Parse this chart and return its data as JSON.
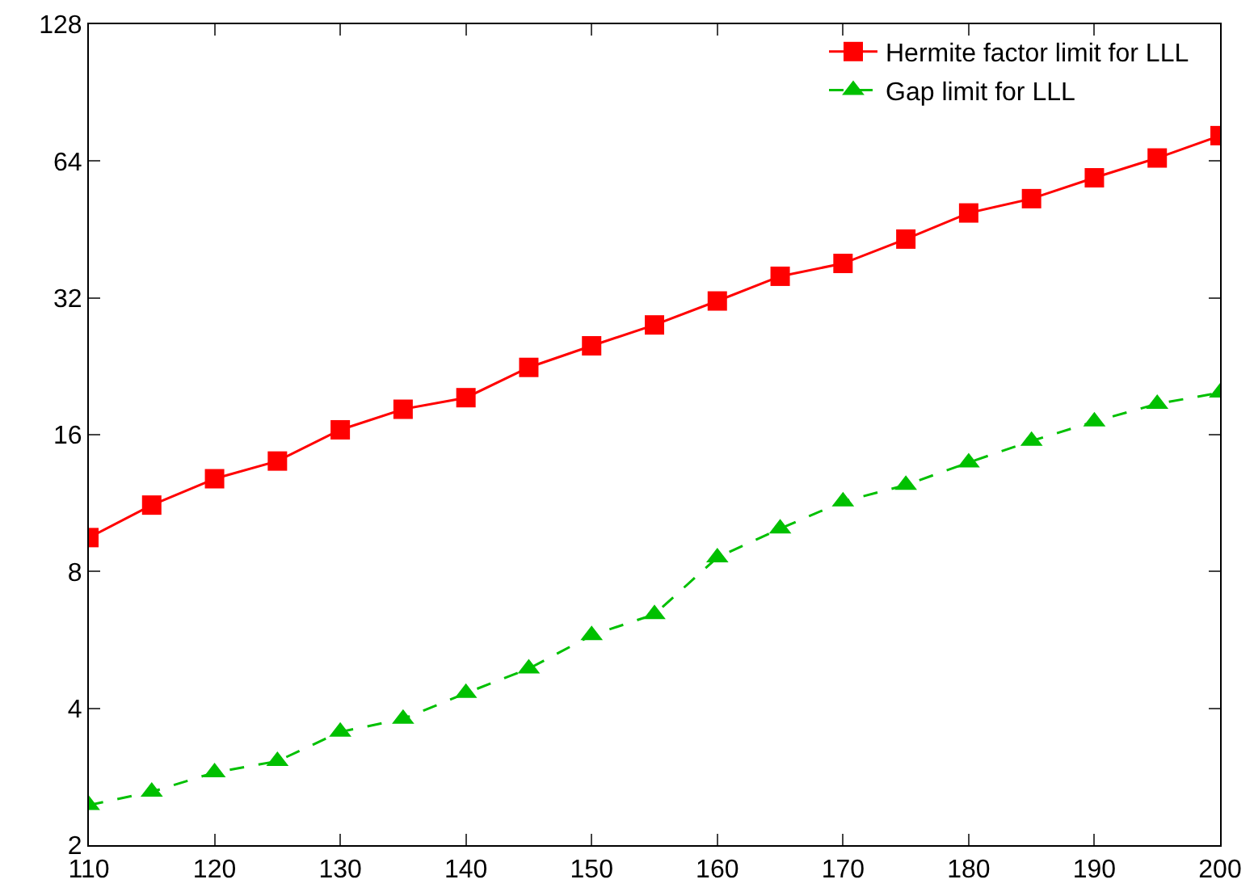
{
  "chart_data": {
    "type": "line",
    "x": [
      110,
      115,
      120,
      125,
      130,
      135,
      140,
      145,
      150,
      155,
      160,
      165,
      170,
      175,
      180,
      185,
      190,
      195,
      200
    ],
    "series": [
      {
        "name": "Hermite factor limit for LLL",
        "color": "#ff0000",
        "marker": "square",
        "line_style": "solid",
        "values": [
          9.5,
          11.2,
          12.8,
          14.0,
          16.4,
          18.2,
          19.3,
          22.5,
          25.1,
          27.9,
          31.5,
          35.7,
          38.1,
          43.1,
          49.2,
          52.9,
          58.8,
          65.0,
          72.8
        ]
      },
      {
        "name": "Gap limit for LLL",
        "color": "#00c000",
        "marker": "triangle",
        "line_style": "dashed",
        "values": [
          2.45,
          2.62,
          2.89,
          3.06,
          3.55,
          3.79,
          4.32,
          4.89,
          5.79,
          6.44,
          8.59,
          9.94,
          11.4,
          12.4,
          13.9,
          15.5,
          17.1,
          18.7,
          19.8
        ]
      }
    ],
    "log": "y",
    "xlim": [
      110,
      200
    ],
    "xticks": [
      110,
      120,
      130,
      140,
      150,
      160,
      170,
      180,
      190,
      200
    ],
    "ylim": [
      2,
      128
    ],
    "yticks": [
      2,
      4,
      8,
      16,
      32,
      64,
      128
    ],
    "grid": false,
    "legend": "top right"
  }
}
